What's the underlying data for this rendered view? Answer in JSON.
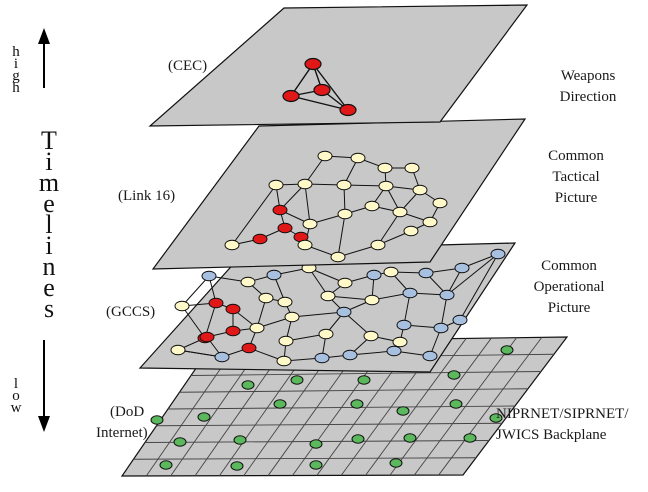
{
  "axis": {
    "high": "high",
    "low": "low",
    "title": "Timelines"
  },
  "layers": [
    {
      "id": "cec",
      "system": "(CEC)",
      "function": [
        "Weapons",
        "Direction"
      ]
    },
    {
      "id": "link16",
      "system": "(Link 16)",
      "function": [
        "Common",
        "Tactical",
        "Picture"
      ]
    },
    {
      "id": "gccs",
      "system": "(GCCS)",
      "function": [
        "Common",
        "Operational",
        "Picture"
      ]
    },
    {
      "id": "dod",
      "system": [
        "(DoD",
        "Internet)"
      ],
      "function": [
        "NIPRNET/SIPRNET/",
        "JWICS Backplane"
      ]
    }
  ],
  "colors": {
    "plane_fill": "#c8c8c8",
    "red_node": "#e01818",
    "cream_node": "#fff8c8",
    "blue_node": "#a8c0e0",
    "green_node": "#5cb85c",
    "edge": "#111111"
  }
}
